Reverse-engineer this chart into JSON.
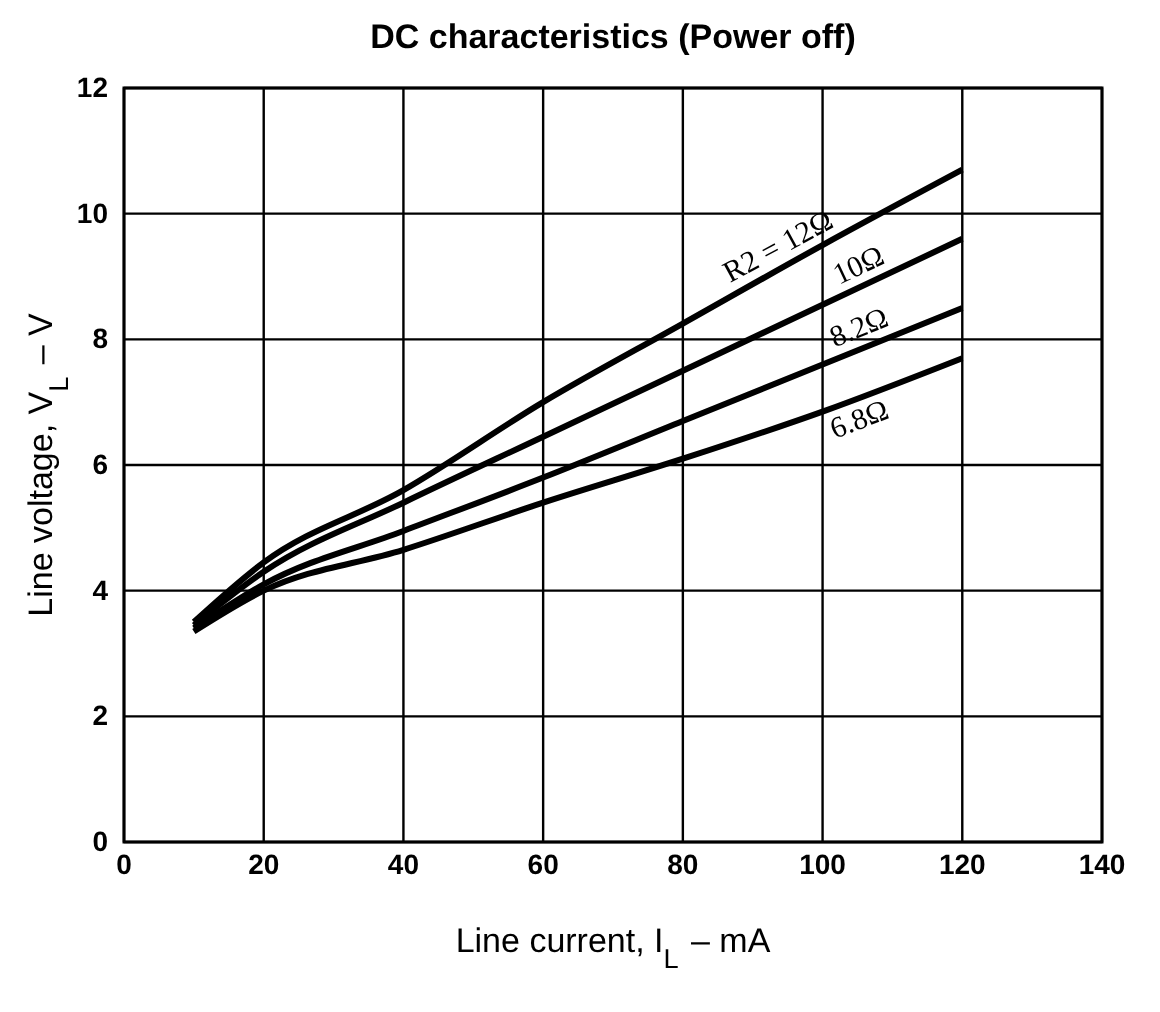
{
  "chart_data": {
    "type": "line",
    "title": "DC characteristics (Power off)",
    "xlabel": "Line current, I$_{L}$ – mA",
    "ylabel": "Line voltage, V$_{L}$ – V",
    "xlim": [
      0,
      140
    ],
    "xticks": [
      0,
      20,
      40,
      60,
      80,
      100,
      120,
      140
    ],
    "ylim": [
      0,
      12
    ],
    "yticks": [
      0,
      2,
      4,
      6,
      8,
      10,
      12
    ],
    "grid": true,
    "legend": false,
    "line_style": "solid",
    "marker": "none",
    "x": [
      10,
      20,
      40,
      60,
      80,
      100,
      120
    ],
    "series": [
      {
        "name": "R2 = 12Ω",
        "color": "#000000",
        "values": [
          3.5,
          4.45,
          5.6,
          7.0,
          8.25,
          9.5,
          10.7
        ]
      },
      {
        "name": "10Ω",
        "color": "#000000",
        "values": [
          3.45,
          4.3,
          5.4,
          6.45,
          7.5,
          8.55,
          9.6
        ]
      },
      {
        "name": "8.2Ω",
        "color": "#000000",
        "values": [
          3.4,
          4.1,
          4.95,
          5.8,
          6.7,
          7.6,
          8.5
        ]
      },
      {
        "name": "6.8Ω",
        "color": "#000000",
        "values": [
          3.35,
          4.0,
          4.65,
          5.4,
          6.1,
          6.85,
          7.7
        ]
      }
    ]
  }
}
